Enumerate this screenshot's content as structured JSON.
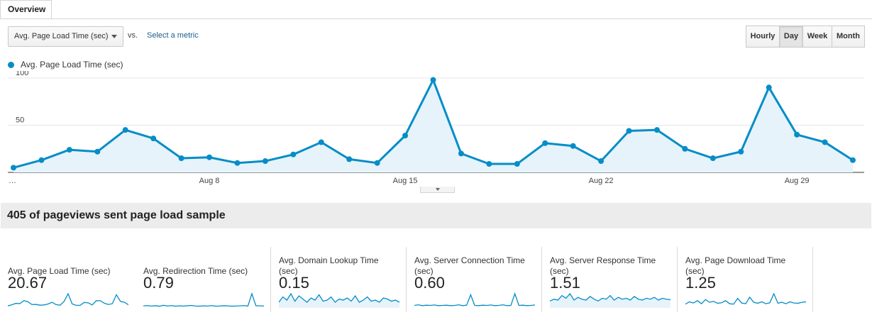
{
  "tabs": [
    {
      "label": "Overview"
    }
  ],
  "controls": {
    "metric_select": "Avg. Page Load Time (sec)",
    "vs_label": "vs.",
    "select_metric_link": "Select a metric",
    "granularity": [
      "Hourly",
      "Day",
      "Week",
      "Month"
    ],
    "granularity_active": "Day"
  },
  "colors": {
    "series": "#058dc7",
    "area": "#e6f3fa",
    "grid": "#e5e5e5"
  },
  "chart_data": {
    "type": "line",
    "legend": "Avg. Page Load Time (sec)",
    "y_ticks": [
      "100",
      "50"
    ],
    "y_tick_values": [
      100,
      50
    ],
    "ylim": [
      0,
      100
    ],
    "x_tick_labels": [
      "…",
      "Aug 8",
      "Aug 15",
      "Aug 22",
      "Aug 29"
    ],
    "x_tick_index": [
      0,
      7,
      14,
      21,
      28
    ],
    "series": [
      {
        "name": "Avg. Page Load Time (sec)",
        "values": [
          5,
          13,
          24,
          22,
          45,
          36,
          15,
          16,
          10,
          12,
          19,
          32,
          14,
          10,
          39,
          98,
          20,
          9,
          9,
          31,
          28,
          12,
          44,
          45,
          25,
          15,
          22,
          90,
          40,
          32,
          13
        ]
      }
    ]
  },
  "sample_text": "405 of pageviews sent page load sample",
  "metrics": [
    {
      "label": "Avg. Page Load Time (sec)",
      "value": "20.67",
      "spark": [
        5,
        13,
        24,
        22,
        45,
        36,
        15,
        16,
        10,
        12,
        19,
        32,
        14,
        10,
        39,
        98,
        20,
        9,
        9,
        31,
        28,
        12,
        44,
        45,
        25,
        15,
        22,
        90,
        40,
        32,
        13
      ],
      "fill": false
    },
    {
      "label": "Avg. Redirection Time (sec)",
      "value": "0.79",
      "spark": [
        4,
        6,
        3,
        5,
        2,
        8,
        3,
        6,
        2,
        4,
        3,
        5,
        7,
        3,
        2,
        4,
        3,
        6,
        2,
        3,
        5,
        4,
        2,
        3,
        4,
        6,
        3,
        85,
        5,
        4,
        3
      ],
      "fill": false
    },
    {
      "label": "Avg. Domain Lookup Time (sec)",
      "value": "0.15",
      "spark": [
        20,
        45,
        30,
        60,
        25,
        50,
        35,
        20,
        40,
        30,
        55,
        25,
        30,
        45,
        20,
        35,
        30,
        40,
        25,
        50,
        20,
        30,
        45,
        25,
        30,
        20,
        40,
        35,
        25,
        30,
        20
      ],
      "fill": true
    },
    {
      "label": "Avg. Server Connection Time (sec)",
      "value": "0.60",
      "spark": [
        5,
        8,
        4,
        6,
        5,
        7,
        4,
        5,
        6,
        4,
        5,
        8,
        4,
        6,
        55,
        5,
        4,
        6,
        5,
        7,
        4,
        5,
        8,
        4,
        5,
        60,
        5,
        6,
        4,
        5,
        7
      ],
      "fill": false
    },
    {
      "label": "Avg. Server Response Time (sec)",
      "value": "1.51",
      "spark": [
        30,
        40,
        35,
        60,
        45,
        70,
        35,
        50,
        40,
        35,
        55,
        40,
        30,
        45,
        40,
        60,
        35,
        50,
        40,
        45,
        35,
        55,
        40,
        35,
        45,
        40,
        50,
        35,
        45,
        40,
        38
      ],
      "fill": true
    },
    {
      "label": "Avg. Page Download Time (sec)",
      "value": "1.25",
      "spark": [
        10,
        20,
        15,
        25,
        12,
        30,
        18,
        22,
        14,
        16,
        25,
        12,
        10,
        35,
        15,
        12,
        40,
        18,
        14,
        20,
        12,
        16,
        55,
        14,
        18,
        12,
        20,
        15,
        14,
        18,
        20
      ],
      "fill": false
    }
  ]
}
